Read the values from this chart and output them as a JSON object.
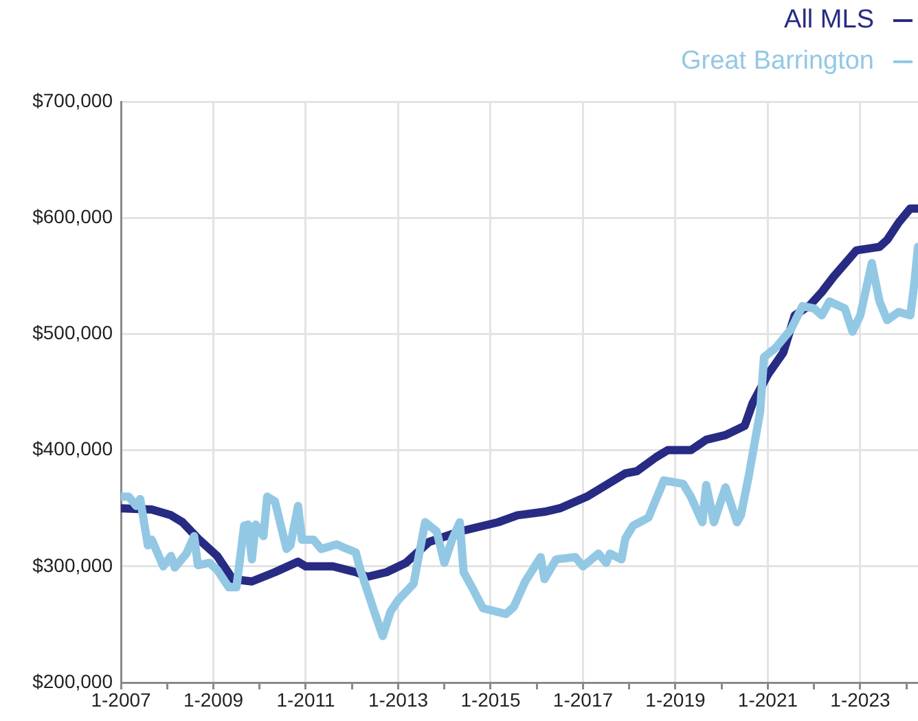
{
  "chart_data": {
    "type": "line",
    "legend": "top right",
    "grid": true,
    "xlim": [
      "2007-01",
      "2024-04"
    ],
    "xticks": [
      {
        "value": "2007-01",
        "label": "1-2007"
      },
      {
        "value": "2008-01",
        "label": null
      },
      {
        "value": "2009-01",
        "label": "1-2009"
      },
      {
        "value": "2010-01",
        "label": null
      },
      {
        "value": "2011-01",
        "label": "1-2011"
      },
      {
        "value": "2012-01",
        "label": null
      },
      {
        "value": "2013-01",
        "label": "1-2013"
      },
      {
        "value": "2014-01",
        "label": null
      },
      {
        "value": "2015-01",
        "label": "1-2015"
      },
      {
        "value": "2016-01",
        "label": null
      },
      {
        "value": "2017-01",
        "label": "1-2017"
      },
      {
        "value": "2018-01",
        "label": null
      },
      {
        "value": "2019-01",
        "label": "1-2019"
      },
      {
        "value": "2020-01",
        "label": null
      },
      {
        "value": "2021-01",
        "label": "1-2021"
      },
      {
        "value": "2022-01",
        "label": null
      },
      {
        "value": "2023-01",
        "label": "1-2023"
      },
      {
        "value": "2024-01",
        "label": null
      }
    ],
    "ylim": [
      200000,
      700000
    ],
    "yticks": [
      {
        "value": 200000,
        "label": "$200,000"
      },
      {
        "value": 300000,
        "label": "$300,000"
      },
      {
        "value": 400000,
        "label": "$400,000"
      },
      {
        "value": 500000,
        "label": "$500,000"
      },
      {
        "value": 600000,
        "label": "$600,000"
      },
      {
        "value": 700000,
        "label": "$700,000"
      }
    ],
    "series": [
      {
        "name": "All MLS",
        "color": "#272b83",
        "x": [
          "2007-01",
          "2007-09",
          "2008-02",
          "2008-05",
          "2008-09",
          "2009-02",
          "2009-06",
          "2009-11",
          "2010-05",
          "2010-11",
          "2011-01",
          "2011-08",
          "2012-02",
          "2012-05",
          "2012-10",
          "2013-03",
          "2013-09",
          "2014-05",
          "2015-03",
          "2015-08",
          "2016-03",
          "2016-07",
          "2017-02",
          "2017-07",
          "2017-12",
          "2018-03",
          "2018-08",
          "2018-11",
          "2019-05",
          "2019-09",
          "2020-02",
          "2020-07",
          "2020-09",
          "2021-01",
          "2021-05",
          "2021-08",
          "2021-12",
          "2022-03",
          "2022-06",
          "2022-12",
          "2023-06",
          "2023-08",
          "2023-11",
          "2024-02",
          "2024-04"
        ],
        "values": [
          350000,
          349000,
          344000,
          338000,
          324000,
          309000,
          289000,
          287000,
          295000,
          304000,
          300000,
          300000,
          295000,
          291000,
          295000,
          303000,
          321000,
          330000,
          338000,
          344000,
          347000,
          350000,
          360000,
          370000,
          380000,
          382000,
          394000,
          400000,
          400000,
          409000,
          413000,
          421000,
          440000,
          465000,
          484000,
          516000,
          525000,
          536000,
          549000,
          572000,
          575000,
          581000,
          596000,
          608000,
          608000
        ]
      },
      {
        "name": "Great Barrington",
        "color": "#93c8e4",
        "x": [
          "2007-01",
          "2007-03",
          "2007-05",
          "2007-06",
          "2007-08",
          "2007-09",
          "2007-12",
          "2008-02",
          "2008-03",
          "2008-06",
          "2008-08",
          "2008-09",
          "2008-12",
          "2009-02",
          "2009-05",
          "2009-07",
          "2009-09",
          "2009-10",
          "2009-11",
          "2009-12",
          "2010-02",
          "2010-03",
          "2010-05",
          "2010-08",
          "2010-09",
          "2010-11",
          "2010-12",
          "2011-03",
          "2011-05",
          "2011-09",
          "2011-11",
          "2012-02",
          "2012-03",
          "2012-07",
          "2012-09",
          "2012-11",
          "2013-01",
          "2013-05",
          "2013-08",
          "2013-11",
          "2014-01",
          "2014-03",
          "2014-05",
          "2014-06",
          "2014-08",
          "2014-11",
          "2015-05",
          "2015-07",
          "2015-10",
          "2016-02",
          "2016-03",
          "2016-06",
          "2016-11",
          "2017-01",
          "2017-05",
          "2017-07",
          "2017-08",
          "2017-11",
          "2017-12",
          "2018-02",
          "2018-06",
          "2018-10",
          "2019-03",
          "2019-05",
          "2019-08",
          "2019-09",
          "2019-11",
          "2020-02",
          "2020-05",
          "2020-06",
          "2020-08",
          "2020-11",
          "2020-12",
          "2021-03",
          "2021-07",
          "2021-10",
          "2022-01",
          "2022-03",
          "2022-05",
          "2022-09",
          "2022-11",
          "2023-01",
          "2023-04",
          "2023-06",
          "2023-08",
          "2023-11",
          "2024-02",
          "2024-03",
          "2024-04"
        ],
        "values": [
          360000,
          360000,
          352000,
          358000,
          318000,
          323000,
          300000,
          309000,
          299000,
          311000,
          326000,
          301000,
          303000,
          297000,
          282000,
          282000,
          335000,
          336000,
          306000,
          336000,
          326000,
          360000,
          356000,
          315000,
          318000,
          352000,
          323000,
          323000,
          315000,
          319000,
          316000,
          312000,
          299000,
          259000,
          240000,
          261000,
          271000,
          285000,
          338000,
          330000,
          303000,
          323000,
          338000,
          295000,
          283000,
          264000,
          259000,
          265000,
          287000,
          308000,
          289000,
          306000,
          308000,
          300000,
          311000,
          303000,
          311000,
          306000,
          324000,
          335000,
          342000,
          374000,
          371000,
          360000,
          338000,
          370000,
          338000,
          368000,
          338000,
          344000,
          377000,
          433000,
          480000,
          488000,
          504000,
          524000,
          522000,
          516000,
          528000,
          522000,
          502000,
          516000,
          561000,
          528000,
          512000,
          519000,
          516000,
          542000,
          575000
        ]
      }
    ]
  }
}
